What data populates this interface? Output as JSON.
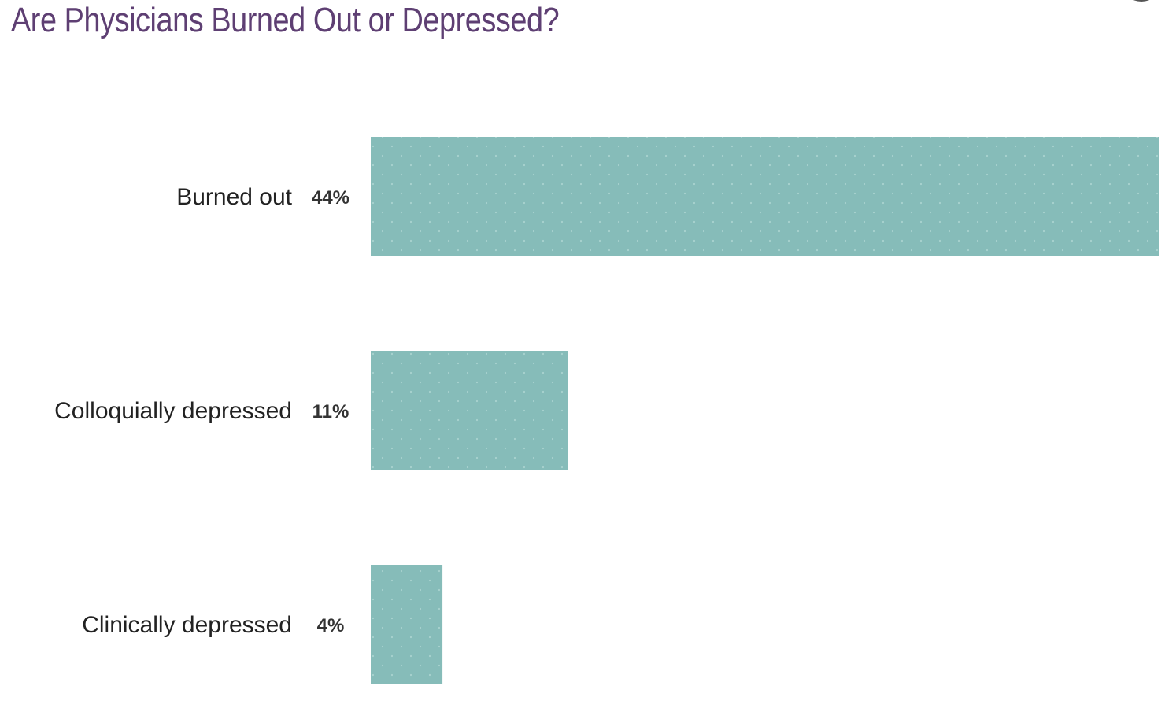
{
  "chart_data": {
    "type": "bar",
    "orientation": "horizontal",
    "title": "Are Physicians Burned Out or Depressed?",
    "categories": [
      "Burned out",
      "Colloquially depressed",
      "Clinically depressed"
    ],
    "values": [
      44,
      11,
      4
    ],
    "value_labels": [
      "44%",
      "11%",
      "4%"
    ],
    "unit": "%",
    "xlim": [
      0,
      44
    ],
    "grid": false,
    "legend": "none",
    "colors": {
      "title": "#5e3f73",
      "bar": "#86bcb9",
      "bar_dots": "#a9d2cf",
      "label": "#222222"
    }
  }
}
